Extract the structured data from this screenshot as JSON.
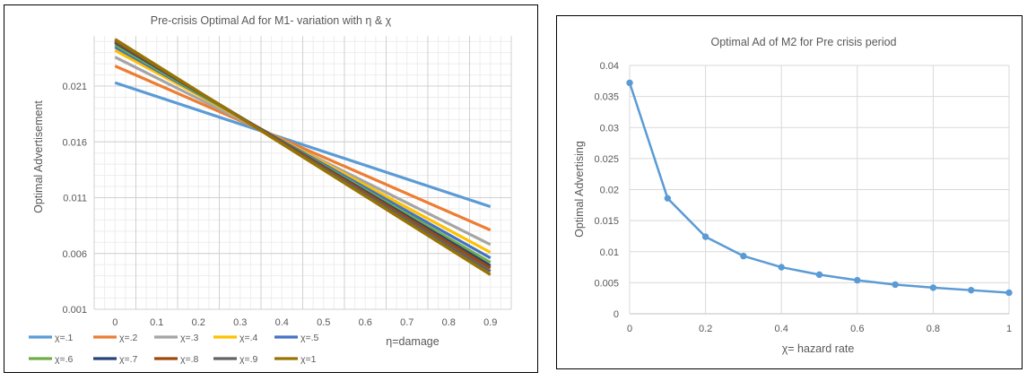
{
  "chart_data": [
    {
      "type": "line",
      "title": "Pre-crisis Optimal Ad for M1- variation with η & χ",
      "xlabel": "η=damage",
      "ylabel": "Optimal Advertisement",
      "x": [
        0,
        0.1,
        0.2,
        0.3,
        0.4,
        0.5,
        0.6,
        0.7,
        0.8,
        0.9
      ],
      "x_tick_labels": [
        "0",
        "0.1",
        "0.2",
        "0.3",
        "0.4",
        "0.5",
        "0.6",
        "0.7",
        "0.8",
        "0.9"
      ],
      "y_ticks": [
        0.001,
        0.006,
        0.011,
        0.016,
        0.021
      ],
      "y_tick_labels": [
        "0.001",
        "0.006",
        "0.011",
        "0.016",
        "0.021"
      ],
      "ylim": [
        0.001,
        0.0255
      ],
      "grid": true,
      "legend_position": "bottom",
      "series": [
        {
          "name": "χ=.1",
          "color": "#5b9bd5",
          "start": 0.0213,
          "end": 0.0102
        },
        {
          "name": "χ=.2",
          "color": "#ed7d31",
          "start": 0.0228,
          "end": 0.0081
        },
        {
          "name": "χ=.3",
          "color": "#a5a5a5",
          "start": 0.0236,
          "end": 0.0068
        },
        {
          "name": "χ=.4",
          "color": "#ffc000",
          "start": 0.0242,
          "end": 0.0061
        },
        {
          "name": "χ=.5",
          "color": "#4472c4",
          "start": 0.0245,
          "end": 0.0056
        },
        {
          "name": "χ=.6",
          "color": "#70ad47",
          "start": 0.0247,
          "end": 0.0052
        },
        {
          "name": "χ=.7",
          "color": "#264478",
          "start": 0.0249,
          "end": 0.0049
        },
        {
          "name": "χ=.8",
          "color": "#9e480e",
          "start": 0.025,
          "end": 0.0047
        },
        {
          "name": "χ=.9",
          "color": "#636363",
          "start": 0.0251,
          "end": 0.0044
        },
        {
          "name": "χ=1",
          "color": "#997300",
          "start": 0.0252,
          "end": 0.0041
        }
      ]
    },
    {
      "type": "line",
      "title": "Optimal Ad of M2 for Pre crisis period",
      "xlabel": "χ= hazard rate",
      "ylabel": "Optimal Advertising",
      "x": [
        0,
        0.1,
        0.2,
        0.3,
        0.4,
        0.5,
        0.6,
        0.7,
        0.8,
        0.9,
        1.0
      ],
      "values": [
        0.0372,
        0.0186,
        0.0124,
        0.0093,
        0.0075,
        0.0063,
        0.0054,
        0.0047,
        0.0042,
        0.0038,
        0.0034
      ],
      "x_ticks": [
        0,
        0.2,
        0.4,
        0.6,
        0.8,
        1
      ],
      "x_tick_labels": [
        "0",
        "0.2",
        "0.4",
        "0.6",
        "0.8",
        "1"
      ],
      "y_ticks": [
        0,
        0.005,
        0.01,
        0.015,
        0.02,
        0.025,
        0.03,
        0.035,
        0.04
      ],
      "y_tick_labels": [
        "0",
        "0.005",
        "0.01",
        "0.015",
        "0.02",
        "0.025",
        "0.03",
        "0.035",
        "0.04"
      ],
      "xlim": [
        0,
        1
      ],
      "ylim": [
        0,
        0.04
      ],
      "grid": true,
      "line_color": "#5b9bd5",
      "markers": true
    }
  ]
}
